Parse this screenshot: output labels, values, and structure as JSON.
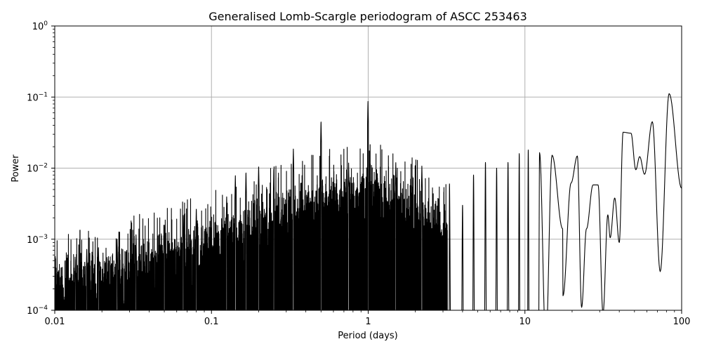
{
  "chart_data": {
    "type": "line",
    "title": "Generalised Lomb-Scargle periodogram of ASCC 253463",
    "xlabel": "Period (days)",
    "ylabel": "Power",
    "xscale": "log",
    "yscale": "log",
    "xlim": [
      0.01,
      100
    ],
    "ylim": [
      0.0001,
      1
    ],
    "grid": true,
    "line_color": "#000000",
    "xticks": [
      {
        "value": 0.01,
        "label": "0.01"
      },
      {
        "value": 0.1,
        "label": "0.1"
      },
      {
        "value": 1,
        "label": "1"
      },
      {
        "value": 10,
        "label": "10"
      },
      {
        "value": 100,
        "label": "100"
      }
    ],
    "yticks": [
      {
        "value": 0.0001,
        "base": "10",
        "exp": "−4"
      },
      {
        "value": 0.001,
        "base": "10",
        "exp": "−3"
      },
      {
        "value": 0.01,
        "base": "10",
        "exp": "−2"
      },
      {
        "value": 0.1,
        "base": "10",
        "exp": "−1"
      },
      {
        "value": 1,
        "base": "10",
        "exp": "0"
      }
    ],
    "series": [
      {
        "peaks": [
          {
            "period": 0.0135,
            "power": 0.00055
          },
          {
            "period": 0.016,
            "power": 0.00075
          },
          {
            "period": 0.019,
            "power": 0.0008
          },
          {
            "period": 0.025,
            "power": 0.001
          },
          {
            "period": 0.033,
            "power": 0.0012
          },
          {
            "period": 0.05,
            "power": 0.0016
          },
          {
            "period": 0.066,
            "power": 0.0022
          },
          {
            "period": 0.08,
            "power": 0.0028
          },
          {
            "period": 0.125,
            "power": 0.004
          },
          {
            "period": 0.142,
            "power": 0.008
          },
          {
            "period": 0.166,
            "power": 0.009
          },
          {
            "period": 0.2,
            "power": 0.011
          },
          {
            "period": 0.25,
            "power": 0.01
          },
          {
            "period": 0.333,
            "power": 0.019
          },
          {
            "period": 0.5,
            "power": 0.047
          },
          {
            "period": 0.75,
            "power": 0.012
          },
          {
            "period": 0.997,
            "power": 0.09
          },
          {
            "period": 1.5,
            "power": 0.012
          },
          {
            "period": 2.2,
            "power": 0.011
          }
        ],
        "envelope": [
          {
            "period": 0.01,
            "power": 0.0003
          },
          {
            "period": 0.02,
            "power": 0.0004
          },
          {
            "period": 0.05,
            "power": 0.0006
          },
          {
            "period": 0.1,
            "power": 0.0012
          },
          {
            "period": 0.2,
            "power": 0.002
          },
          {
            "period": 0.5,
            "power": 0.004
          },
          {
            "period": 1,
            "power": 0.006
          },
          {
            "period": 2,
            "power": 0.003
          },
          {
            "period": 3,
            "power": 0.002
          }
        ],
        "long_period_peaks": [
          {
            "period": 3.3,
            "power": 0.006
          },
          {
            "period": 4.0,
            "power": 0.003
          },
          {
            "period": 4.7,
            "power": 0.008
          },
          {
            "period": 5.6,
            "power": 0.012
          },
          {
            "period": 6.6,
            "power": 0.01
          },
          {
            "period": 7.8,
            "power": 0.012
          },
          {
            "period": 9.2,
            "power": 0.016
          },
          {
            "period": 10.5,
            "power": 0.018
          },
          {
            "period": 12.4,
            "power": 0.0165
          },
          {
            "period": 14.9,
            "power": 0.0152
          },
          {
            "period": 17.4,
            "power": 0.0014
          },
          {
            "period": 19.7,
            "power": 0.0062
          },
          {
            "period": 21.6,
            "power": 0.0148
          },
          {
            "period": 24.7,
            "power": 0.0014
          },
          {
            "period": 27.2,
            "power": 0.0058
          },
          {
            "period": 29.3,
            "power": 0.0058
          },
          {
            "period": 33.8,
            "power": 0.0022
          },
          {
            "period": 37.4,
            "power": 0.0038
          },
          {
            "period": 42.3,
            "power": 0.032
          },
          {
            "period": 47.5,
            "power": 0.031
          },
          {
            "period": 54.0,
            "power": 0.0145
          },
          {
            "period": 65.0,
            "power": 0.045
          },
          {
            "period": 83.2,
            "power": 0.112
          },
          {
            "period": 100.0,
            "power": 0.0052
          }
        ],
        "long_period_dips": [
          {
            "period": 17.5,
            "power": 0.00016
          },
          {
            "period": 23.0,
            "power": 0.00011
          },
          {
            "period": 31.5,
            "power": 9e-05
          },
          {
            "period": 35.0,
            "power": 0.00105
          },
          {
            "period": 40.0,
            "power": 0.0009
          },
          {
            "period": 51.0,
            "power": 0.0095
          },
          {
            "period": 58.0,
            "power": 0.0082
          },
          {
            "period": 73.0,
            "power": 0.00035
          }
        ]
      }
    ]
  }
}
